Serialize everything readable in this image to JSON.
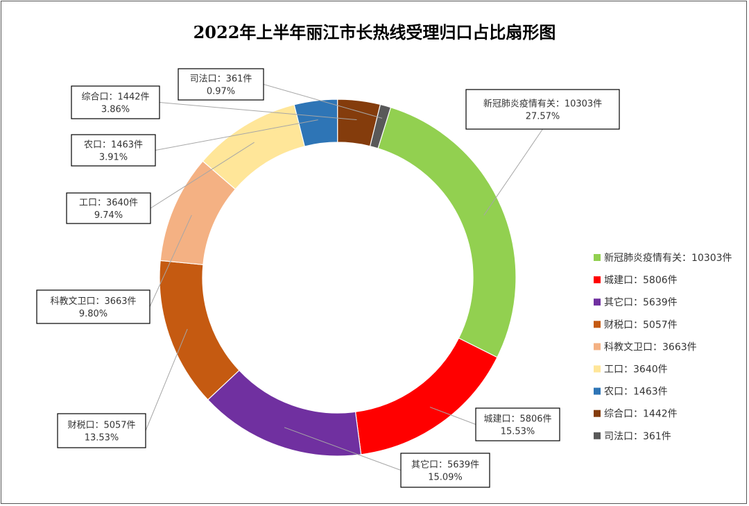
{
  "chart_data": {
    "type": "pie",
    "variant": "donut",
    "title": "2022年上半年丽江市长热线受理归口占比扇形图",
    "legend_position": "right",
    "unit": "件",
    "slices": [
      {
        "name": "新冠肺炎疫情有关",
        "value": 10303,
        "percent": "27.57%",
        "color": "#92d050",
        "label_line1": "新冠肺炎疫情有关：10303件",
        "label_line2": "27.57%",
        "legend": "新冠肺炎疫情有关：10303件"
      },
      {
        "name": "城建口",
        "value": 5806,
        "percent": "15.53%",
        "color": "#ff0000",
        "label_line1": "城建口：5806件",
        "label_line2": "15.53%",
        "legend": "城建口：5806件"
      },
      {
        "name": "其它口",
        "value": 5639,
        "percent": "15.09%",
        "color": "#7030a0",
        "label_line1": "其它口：5639件",
        "label_line2": "15.09%",
        "legend": "其它口：5639件"
      },
      {
        "name": "财税口",
        "value": 5057,
        "percent": "13.53%",
        "color": "#c55a11",
        "label_line1": "财税口：5057件",
        "label_line2": "13.53%",
        "legend": "财税口：5057件"
      },
      {
        "name": "科教文卫口",
        "value": 3663,
        "percent": "9.80%",
        "color": "#f4b183",
        "label_line1": "科教文卫口：3663件",
        "label_line2": "9.80%",
        "legend": "科教文卫口：3663件"
      },
      {
        "name": "工口",
        "value": 3640,
        "percent": "9.74%",
        "color": "#ffe699",
        "label_line1": "工口：3640件",
        "label_line2": "9.74%",
        "legend": "工口：3640件"
      },
      {
        "name": "农口",
        "value": 1463,
        "percent": "3.91%",
        "color": "#2e75b6",
        "label_line1": "农口：1463件",
        "label_line2": "3.91%",
        "legend": "农口：1463件"
      },
      {
        "name": "综合口",
        "value": 1442,
        "percent": "3.86%",
        "color": "#843c0c",
        "label_line1": "综合口：1442件",
        "label_line2": "3.86%",
        "legend": "综合口：1442件"
      },
      {
        "name": "司法口",
        "value": 361,
        "percent": "0.97%",
        "color": "#595959",
        "label_line1": "司法口：361件",
        "label_line2": "0.97%",
        "legend": "司法口：361件"
      }
    ]
  }
}
